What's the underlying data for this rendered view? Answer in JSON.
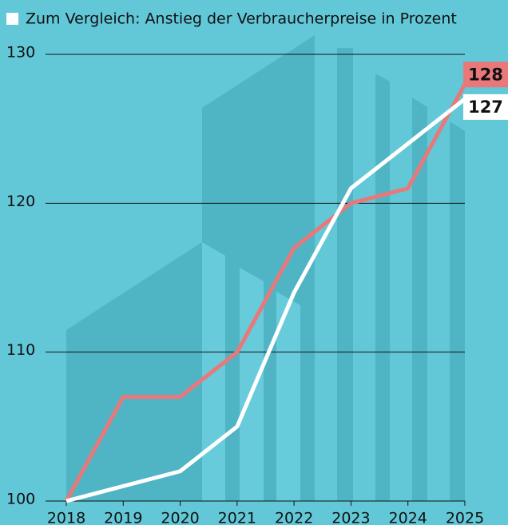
{
  "chart_data": {
    "type": "line",
    "categories": [
      "2018",
      "2019",
      "2020",
      "2021",
      "2022",
      "2023",
      "2024",
      "2025"
    ],
    "series": [
      {
        "name": "Zum Vergleich: Anstieg der Verbraucherpreise in Prozent",
        "color": "#ffffff",
        "values": [
          100,
          101,
          102,
          105,
          114,
          121,
          124,
          127
        ]
      },
      {
        "color": "#e8787a",
        "values": [
          100,
          107,
          107,
          110,
          117,
          120,
          121,
          128
        ]
      }
    ],
    "ylim": [
      100,
      130
    ],
    "yticks": [
      100,
      110,
      120,
      130
    ],
    "grid": true
  }
}
